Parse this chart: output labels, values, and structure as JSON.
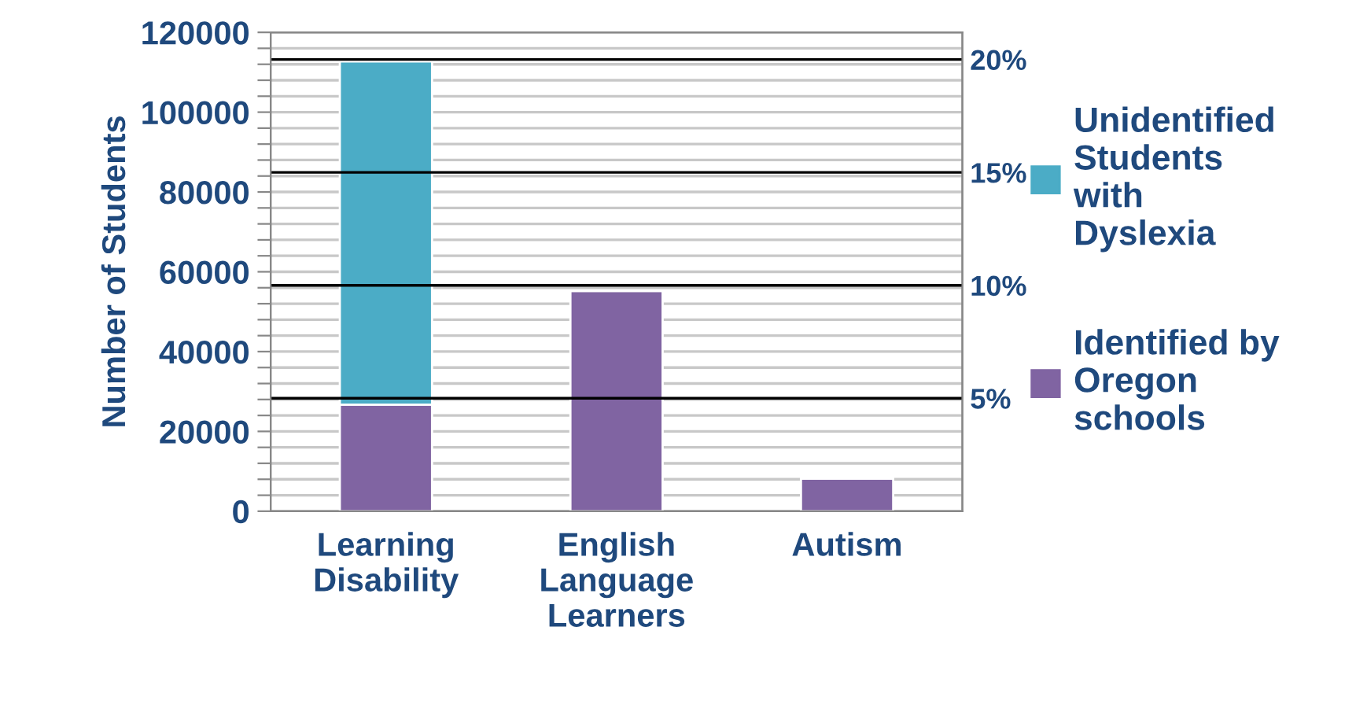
{
  "chart_data": {
    "type": "bar",
    "stacked": true,
    "categories": [
      "Learning Disability",
      "English Language Learners",
      "Autism"
    ],
    "series": [
      {
        "name": "Identified by Oregon schools",
        "color": "#8064a2",
        "values": [
          26700,
          55200,
          8200
        ]
      },
      {
        "name": "Unidentified Students with Dyslexia",
        "color": "#4bacc6",
        "values": [
          86000,
          null,
          null
        ]
      }
    ],
    "ylabel": "Number of Students",
    "ylim": [
      0,
      120000
    ],
    "yticks": [
      0,
      {
        "value": 4000,
        "label": null
      },
      {
        "value": 8000,
        "label": null
      },
      {
        "value": 12000,
        "label": null
      },
      {
        "value": 16000,
        "label": null
      },
      20000,
      {
        "value": 24000,
        "label": null
      },
      {
        "value": 28000,
        "label": null
      },
      {
        "value": 32000,
        "label": null
      },
      {
        "value": 36000,
        "label": null
      },
      40000,
      {
        "value": 44000,
        "label": null
      },
      {
        "value": 48000,
        "label": null
      },
      {
        "value": 52000,
        "label": null
      },
      {
        "value": 56000,
        "label": null
      },
      60000,
      {
        "value": 64000,
        "label": null
      },
      {
        "value": 68000,
        "label": null
      },
      {
        "value": 72000,
        "label": null
      },
      {
        "value": 76000,
        "label": null
      },
      80000,
      {
        "value": 84000,
        "label": null
      },
      {
        "value": 88000,
        "label": null
      },
      {
        "value": 92000,
        "label": null
      },
      {
        "value": 96000,
        "label": null
      },
      100000,
      {
        "value": 104000,
        "label": null
      },
      {
        "value": 108000,
        "label": null
      },
      {
        "value": 112000,
        "label": null
      },
      {
        "value": 116000,
        "label": null
      },
      120000
    ],
    "y2lim": [
      0,
      21.2
    ],
    "y2ticks": [
      {
        "value": 5,
        "label": "5%"
      },
      {
        "value": 10,
        "label": "10%"
      },
      {
        "value": 15,
        "label": "15%"
      },
      {
        "value": 20,
        "label": "20%"
      }
    ],
    "grid": "y",
    "legend": "right"
  }
}
